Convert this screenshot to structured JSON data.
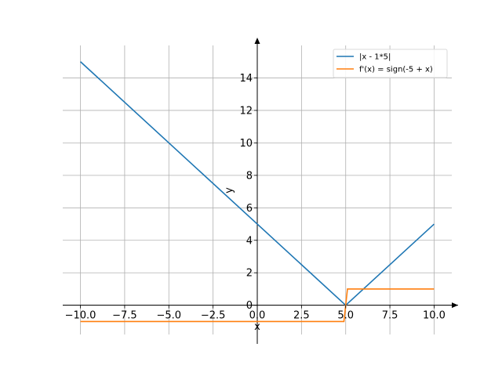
{
  "chart_data": {
    "type": "line",
    "title": "",
    "xlabel": "x",
    "ylabel": "y",
    "xlim": [
      -11.0,
      11.0
    ],
    "ylim": [
      -1.8,
      16.0
    ],
    "xticks": [
      -10,
      -7.5,
      -5,
      -2.5,
      0,
      2.5,
      5,
      7.5,
      10
    ],
    "xtick_labels": [
      "−10.0",
      "−7.5",
      "−5.0",
      "−2.5",
      "0.0",
      "2.5",
      "5.0",
      "7.5",
      "10.0"
    ],
    "yticks": [
      0,
      2,
      4,
      6,
      8,
      10,
      12,
      14
    ],
    "ytick_labels": [
      "0",
      "2",
      "4",
      "6",
      "8",
      "10",
      "12",
      "14"
    ],
    "grid": true,
    "legend_position": "top-right",
    "series": [
      {
        "name": "|x - 1*5|",
        "color": "#1f77b4",
        "x": [
          -10,
          5,
          10
        ],
        "y": [
          15,
          0,
          5
        ]
      },
      {
        "name": "f'(x) = sign(-5 + x)",
        "color": "#ff7f0e",
        "x": [
          -10,
          4.9,
          5.1,
          10
        ],
        "y": [
          -1,
          -1,
          1,
          1
        ]
      }
    ]
  }
}
